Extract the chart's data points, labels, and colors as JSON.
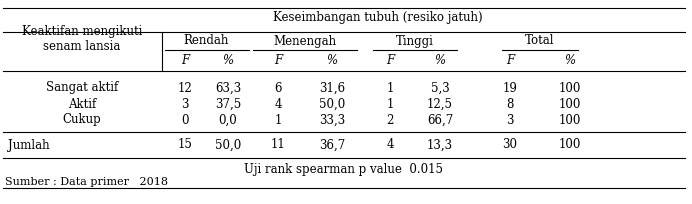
{
  "header1": "Keseimbangan tubuh (resiko jatuh)",
  "left_header": "Keaktifan mengikuti\nsenam lansia",
  "subheaders": [
    "Rendah",
    "Menengah",
    "Tinggi",
    "Total"
  ],
  "col_labels": [
    "F",
    "%",
    "F",
    "%",
    "F",
    "%",
    "F",
    "%"
  ],
  "rows": [
    [
      "Sangat aktif",
      "12",
      "63,3",
      "6",
      "31,6",
      "1",
      "5,3",
      "19",
      "100"
    ],
    [
      "Aktif",
      "3",
      "37,5",
      "4",
      "50,0",
      "1",
      "12,5",
      "8",
      "100"
    ],
    [
      "Cukup",
      "0",
      "0,0",
      "1",
      "33,3",
      "2",
      "66,7",
      "3",
      "100"
    ]
  ],
  "jumlah_row": [
    "Jumlah",
    "15",
    "50,0",
    "11",
    "36,7",
    "4",
    "13,3",
    "30",
    "100"
  ],
  "footer": "Uji rank spearman p value  0.015",
  "sumber": "Sumber : Data primer   2018",
  "bg_color": "#ffffff",
  "text_color": "#000000",
  "fontsize": 8.5,
  "fontfamily": "serif"
}
